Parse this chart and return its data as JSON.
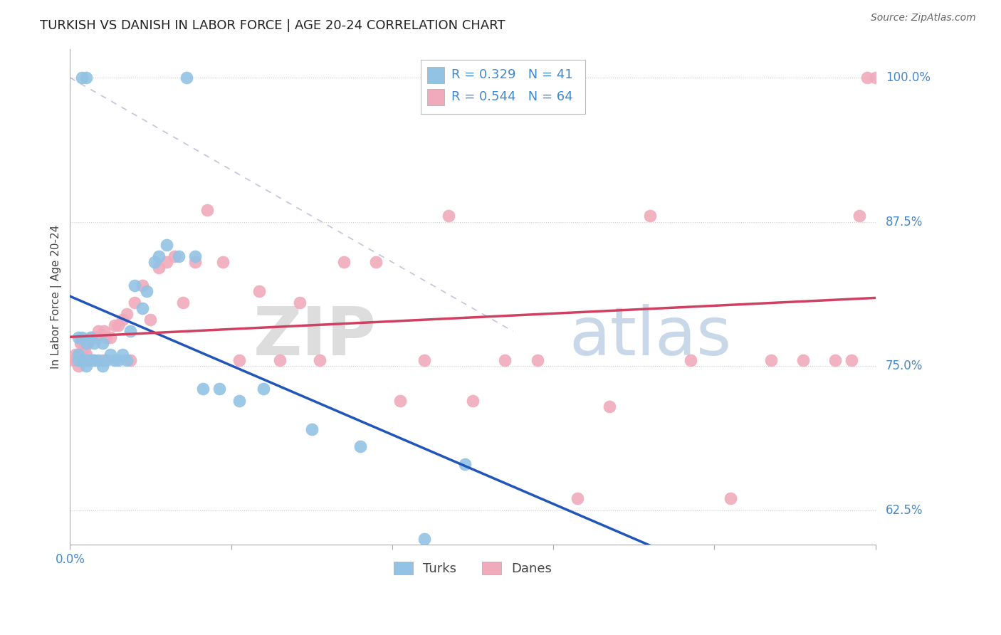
{
  "title": "TURKISH VS DANISH IN LABOR FORCE | AGE 20-24 CORRELATION CHART",
  "source": "Source: ZipAtlas.com",
  "ylabel": "In Labor Force | Age 20-24",
  "xlim": [
    0.0,
    1.0
  ],
  "ylim": [
    0.595,
    1.025
  ],
  "yticks": [
    0.625,
    0.75,
    0.875,
    1.0
  ],
  "ytick_labels": [
    "62.5%",
    "75.0%",
    "87.5%",
    "100.0%"
  ],
  "turks_x": [
    0.015,
    0.02,
    0.145,
    0.01,
    0.01,
    0.01,
    0.015,
    0.015,
    0.02,
    0.02,
    0.02,
    0.025,
    0.025,
    0.03,
    0.03,
    0.035,
    0.04,
    0.04,
    0.045,
    0.05,
    0.055,
    0.06,
    0.065,
    0.07,
    0.075,
    0.08,
    0.09,
    0.095,
    0.105,
    0.11,
    0.12,
    0.135,
    0.155,
    0.165,
    0.185,
    0.21,
    0.24,
    0.3,
    0.36,
    0.44,
    0.49
  ],
  "turks_y": [
    1.0,
    1.0,
    1.0,
    0.755,
    0.76,
    0.775,
    0.755,
    0.775,
    0.75,
    0.755,
    0.77,
    0.755,
    0.775,
    0.755,
    0.77,
    0.755,
    0.75,
    0.77,
    0.755,
    0.76,
    0.755,
    0.755,
    0.76,
    0.755,
    0.78,
    0.82,
    0.8,
    0.815,
    0.84,
    0.845,
    0.855,
    0.845,
    0.845,
    0.73,
    0.73,
    0.72,
    0.73,
    0.695,
    0.68,
    0.6,
    0.665
  ],
  "danes_x": [
    0.005,
    0.007,
    0.008,
    0.01,
    0.01,
    0.012,
    0.013,
    0.015,
    0.015,
    0.017,
    0.018,
    0.02,
    0.02,
    0.022,
    0.022,
    0.025,
    0.027,
    0.03,
    0.032,
    0.035,
    0.04,
    0.042,
    0.045,
    0.05,
    0.055,
    0.06,
    0.065,
    0.07,
    0.075,
    0.08,
    0.09,
    0.1,
    0.11,
    0.12,
    0.13,
    0.14,
    0.155,
    0.17,
    0.19,
    0.21,
    0.235,
    0.26,
    0.285,
    0.31,
    0.34,
    0.38,
    0.41,
    0.44,
    0.47,
    0.5,
    0.54,
    0.58,
    0.63,
    0.67,
    0.72,
    0.77,
    0.82,
    0.87,
    0.91,
    0.95,
    0.97,
    0.98,
    0.99,
    1.0
  ],
  "danes_y": [
    0.755,
    0.76,
    0.755,
    0.75,
    0.76,
    0.755,
    0.77,
    0.755,
    0.77,
    0.755,
    0.765,
    0.755,
    0.76,
    0.755,
    0.77,
    0.755,
    0.775,
    0.755,
    0.775,
    0.78,
    0.755,
    0.78,
    0.775,
    0.775,
    0.785,
    0.785,
    0.79,
    0.795,
    0.755,
    0.805,
    0.82,
    0.79,
    0.835,
    0.84,
    0.845,
    0.805,
    0.84,
    0.885,
    0.84,
    0.755,
    0.815,
    0.755,
    0.805,
    0.755,
    0.84,
    0.84,
    0.72,
    0.755,
    0.88,
    0.72,
    0.755,
    0.755,
    0.635,
    0.715,
    0.88,
    0.755,
    0.635,
    0.755,
    0.755,
    0.755,
    0.755,
    0.88,
    1.0,
    1.0
  ],
  "blue_color": "#92C2E4",
  "pink_color": "#F0AABB",
  "blue_line_color": "#2255BB",
  "pink_line_color": "#D04060",
  "turks_R": 0.329,
  "turks_N": 41,
  "danes_R": 0.544,
  "danes_N": 64,
  "legend_label_turks": "Turks",
  "legend_label_danes": "Danes",
  "axis_label_color": "#4488CC",
  "background_color": "#FFFFFF",
  "watermark_text": "ZIPatlas",
  "source_text": "Source: ZipAtlas.com"
}
